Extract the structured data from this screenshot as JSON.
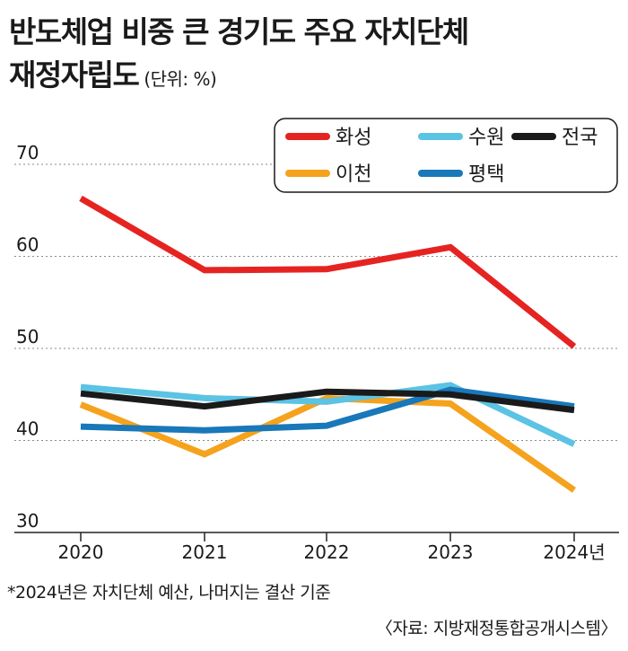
{
  "title_line1": "반도체업 비중 큰 경기도 주요 자치단체",
  "title_line2": "재정자립도",
  "unit": "(단위: %)",
  "footnote": "*2024년은 자치단체 예산, 나머지는 결산 기준",
  "source": "〈자료: 지방재정통합공개시스템〉",
  "chart_data": {
    "type": "line",
    "x": [
      "2020",
      "2021",
      "2022",
      "2023",
      "2024년"
    ],
    "ylim": [
      30,
      70
    ],
    "yticks": [
      30,
      40,
      50,
      60,
      70
    ],
    "grid": true,
    "legend_position": "top-right",
    "series": [
      {
        "name": "화성",
        "color": "#e52421",
        "values": [
          66.3,
          58.5,
          58.6,
          61.0,
          50.2
        ]
      },
      {
        "name": "수원",
        "color": "#5bc3e3",
        "values": [
          45.8,
          44.6,
          44.2,
          46.0,
          39.6
        ]
      },
      {
        "name": "전국",
        "color": "#1a1a1a",
        "values": [
          45.1,
          43.7,
          45.3,
          45.0,
          43.3
        ]
      },
      {
        "name": "이천",
        "color": "#f5a21d",
        "values": [
          43.9,
          38.5,
          44.6,
          44.0,
          34.6
        ]
      },
      {
        "name": "평택",
        "color": "#1878b9",
        "values": [
          41.5,
          41.1,
          41.6,
          45.5,
          43.7
        ]
      }
    ]
  }
}
